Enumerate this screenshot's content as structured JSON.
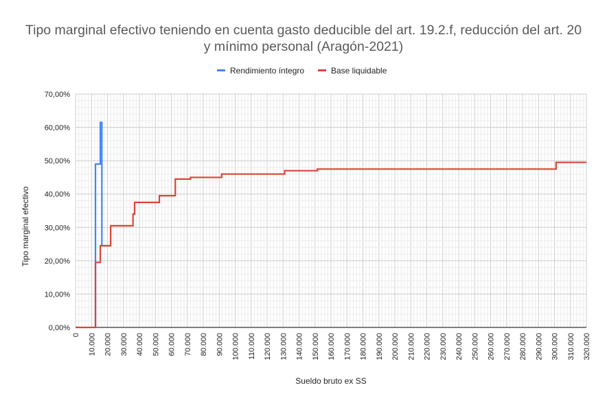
{
  "chart_data": {
    "type": "line",
    "title_line_1": "Tipo marginal efectivo teniendo en cuenta gasto deducible del art. 19.2.f, reducción del art. 20",
    "title_line_2": "y mínimo personal (Aragón-2021)",
    "xlabel": "Sueldo bruto ex SS",
    "ylabel": "Tipo marginal efectivo",
    "xlim": [
      0,
      320000
    ],
    "ylim": [
      0,
      70
    ],
    "x_step": 10000,
    "grid": true,
    "legend_position": "top-center",
    "x_tick_labels": [
      "0",
      "10.000",
      "20.000",
      "30.000",
      "40.000",
      "50.000",
      "60.000",
      "70.000",
      "80.000",
      "90.000",
      "100.000",
      "110.000",
      "120.000",
      "130.000",
      "140.000",
      "150.000",
      "160.000",
      "170.000",
      "180.000",
      "190.000",
      "200.000",
      "210.000",
      "220.000",
      "230.000",
      "240.000",
      "250.000",
      "260.000",
      "270.000",
      "280.000",
      "290.000",
      "300.000",
      "310.000",
      "320.000"
    ],
    "y_tick_labels": [
      "0,00%",
      "10,00%",
      "20,00%",
      "30,00%",
      "40,00%",
      "50,00%",
      "60,00%",
      "70,00%"
    ],
    "y_tick_values": [
      0,
      10,
      20,
      30,
      40,
      50,
      60,
      70
    ],
    "series": [
      {
        "name": "Rendimiento íntegro",
        "color": "#4285f4",
        "points": [
          [
            12500,
            0
          ],
          [
            12500,
            49.0
          ],
          [
            15500,
            49.0
          ],
          [
            15500,
            61.5
          ],
          [
            16500,
            61.5
          ],
          [
            16500,
            24.5
          ],
          [
            22000,
            24.5
          ]
        ]
      },
      {
        "name": "Base liquidable",
        "color": "#db4437",
        "points": [
          [
            0,
            0
          ],
          [
            12500,
            0
          ],
          [
            12500,
            19.5
          ],
          [
            15500,
            19.5
          ],
          [
            15500,
            24.5
          ],
          [
            22000,
            24.5
          ],
          [
            22000,
            30.5
          ],
          [
            36000,
            30.5
          ],
          [
            36000,
            34.0
          ],
          [
            37000,
            34.0
          ],
          [
            37000,
            37.5
          ],
          [
            52500,
            37.5
          ],
          [
            52500,
            39.5
          ],
          [
            62500,
            39.5
          ],
          [
            62500,
            44.5
          ],
          [
            72000,
            44.5
          ],
          [
            72000,
            45.0
          ],
          [
            91500,
            45.0
          ],
          [
            91500,
            46.0
          ],
          [
            131000,
            46.0
          ],
          [
            131000,
            47.0
          ],
          [
            151500,
            47.0
          ],
          [
            151500,
            47.5
          ],
          [
            301000,
            47.5
          ],
          [
            301000,
            49.5
          ],
          [
            320000,
            49.5
          ]
        ]
      }
    ]
  }
}
